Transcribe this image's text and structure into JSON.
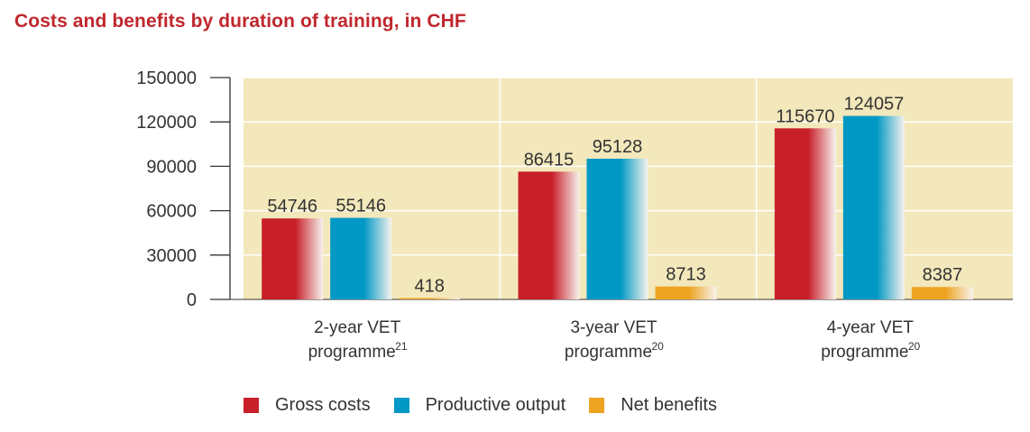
{
  "title": "Costs and benefits by duration of training, in CHF",
  "chart_data": {
    "type": "bar",
    "title": "Costs and benefits by duration of training, in CHF",
    "categories": [
      {
        "line1": "2-year VET",
        "line2": "programme",
        "sup": "21"
      },
      {
        "line1": "3-year VET",
        "line2": "programme",
        "sup": "20"
      },
      {
        "line1": "4-year VET",
        "line2": "programme",
        "sup": "20"
      }
    ],
    "series": [
      {
        "name": "Gross costs",
        "values": [
          54746,
          86415,
          115670
        ],
        "labels": [
          "54746",
          "86415",
          "115670"
        ],
        "color": "#c8202a"
      },
      {
        "name": "Productive output",
        "values": [
          55146,
          95128,
          124057
        ],
        "labels": [
          "55146",
          "95128",
          "124057"
        ],
        "color": "#0098c4"
      },
      {
        "name": "Net benefits",
        "values": [
          418,
          8713,
          8387
        ],
        "labels": [
          "418",
          "8713",
          "8387"
        ],
        "color": "#eea321"
      }
    ],
    "yticks": [
      0,
      30000,
      60000,
      90000,
      120000,
      150000
    ],
    "ytick_labels": [
      "0",
      "30000",
      "60000",
      "90000",
      "120000",
      "150000"
    ],
    "ylim": [
      0,
      150000
    ],
    "xlabel": "",
    "ylabel": "",
    "background_color": "#f3e8bb",
    "legend_position": "bottom"
  }
}
